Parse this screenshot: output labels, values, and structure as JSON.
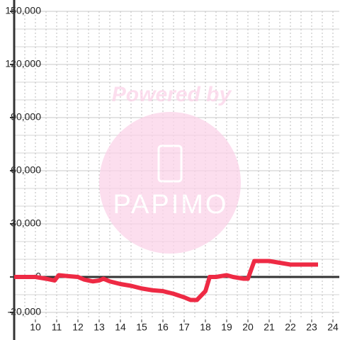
{
  "chart_data": {
    "type": "line",
    "x": [
      9,
      10,
      10.5,
      10.9,
      11.1,
      11.5,
      12,
      12.3,
      12.7,
      13,
      13.2,
      13.5,
      14,
      14.5,
      15,
      15.5,
      16,
      16.5,
      17,
      17.3,
      17.6,
      18,
      18.2,
      18.5,
      19,
      19.3,
      19.8,
      20,
      20.3,
      21,
      21.5,
      22,
      23.3
    ],
    "series": [
      {
        "color": "#ee2a44",
        "values": [
          0,
          0,
          -1000,
          -2000,
          1000,
          500,
          0,
          -1500,
          -2500,
          -2000,
          -1000,
          -2500,
          -4000,
          -5000,
          -6500,
          -7500,
          -8000,
          -9500,
          -11500,
          -13000,
          -13000,
          -8000,
          0,
          0,
          1000,
          0,
          -1000,
          -1000,
          9000,
          9000,
          8000,
          7000,
          7000
        ]
      }
    ],
    "xlim": [
      9,
      24.3
    ],
    "xticks": [
      10,
      11,
      12,
      13,
      14,
      15,
      16,
      17,
      18,
      19,
      20,
      21,
      22,
      23,
      24
    ],
    "x_minor_ticks": [
      9.5,
      10,
      10.5,
      11,
      11.5,
      12,
      12.5,
      13,
      13.5,
      14,
      14.5,
      15,
      15.5,
      16,
      16.5,
      17,
      17.5,
      18,
      18.5,
      19,
      19.5,
      20,
      20.5,
      21,
      21.5,
      22,
      22.5,
      23,
      23.5,
      24
    ],
    "ylim": [
      -24000,
      150000
    ],
    "yticks": [
      {
        "value": -20000,
        "label": "-20,000"
      },
      0,
      {
        "value": 30000,
        "label": "30,000"
      },
      {
        "value": 60000,
        "label": "60,000"
      },
      {
        "value": 90000,
        "label": "90,000"
      },
      {
        "value": 120000,
        "label": "120,000"
      },
      {
        "value": 150000,
        "label": "150,000"
      }
    ],
    "y_minor_ticks": [
      -20000,
      -10000,
      10000,
      20000,
      30000,
      40000,
      50000,
      60000,
      70000,
      80000,
      90000,
      100000,
      110000,
      120000,
      130000,
      140000,
      150000
    ],
    "grid": true,
    "watermark": {
      "text": "Powered by",
      "logo": "PAPIMO"
    }
  }
}
